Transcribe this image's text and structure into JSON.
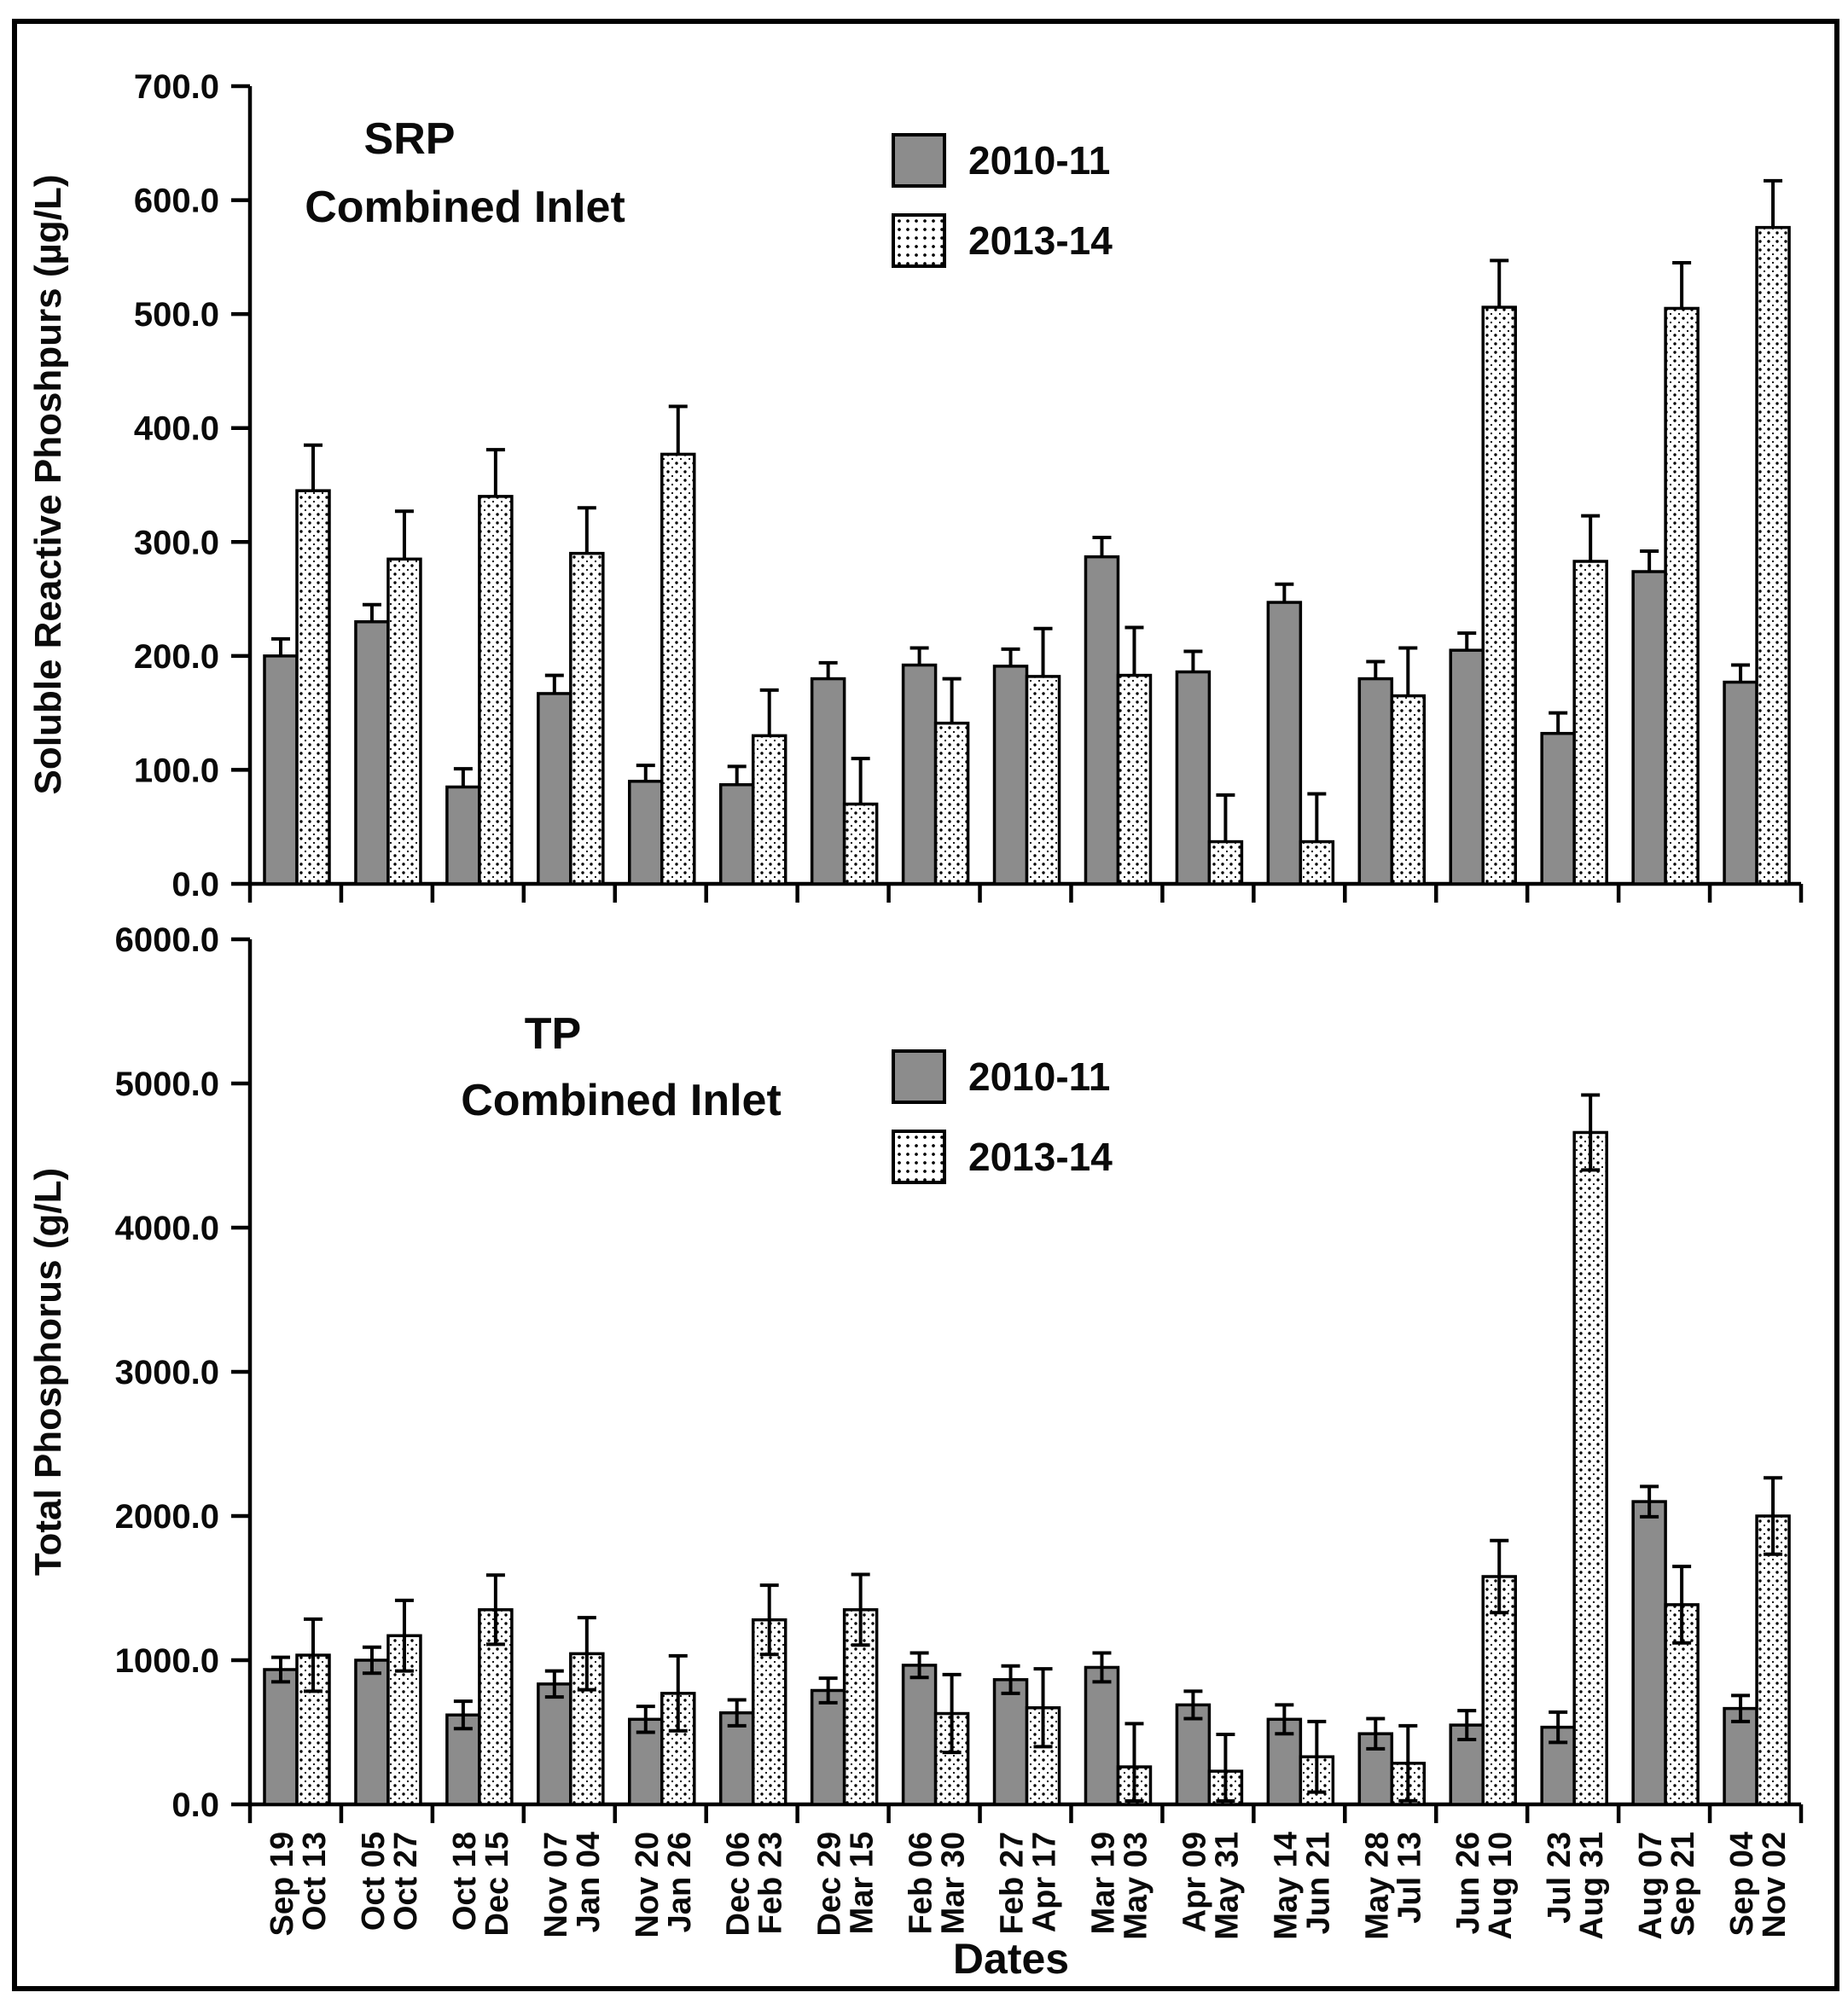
{
  "figure": {
    "background": "#ffffff",
    "frame_color": "#000000",
    "bar_solid_color": "#8c8c8c",
    "bar_dotted_color": "#ffffff",
    "note": "scanned figure: two stacked grouped bar charts with error bars"
  },
  "legend": {
    "entries": [
      {
        "label": "2010-11",
        "pattern": "solid"
      },
      {
        "label": "2013-14",
        "pattern": "dots"
      }
    ]
  },
  "chart_data": [
    {
      "type": "bar",
      "title": "SRP",
      "subtitle": "Combined Inlet",
      "ylabel": "Soluble Reactive Phoshpurs (µg/L)",
      "xlabel": "",
      "ylim": [
        0,
        700
      ],
      "ytick_step": 100,
      "ytick_labels": [
        "0.0",
        "100.0",
        "200.0",
        "300.0",
        "400.0",
        "500.0",
        "600.0",
        "700.0"
      ],
      "grid": false,
      "legend_position": "upper middle",
      "error_bars": "upper",
      "categories": [
        [
          "Sep 19",
          "Oct 13"
        ],
        [
          "Oct 05",
          "Oct 27"
        ],
        [
          "Oct 18",
          "Dec 15"
        ],
        [
          "Nov 07",
          "Jan 04"
        ],
        [
          "Nov 20",
          "Jan 26"
        ],
        [
          "Dec 06",
          "Feb 23"
        ],
        [
          "Dec 29",
          "Mar 15"
        ],
        [
          "Feb 06",
          "Mar 30"
        ],
        [
          "Feb 27",
          "Apr 17"
        ],
        [
          "Mar 19",
          "May 03"
        ],
        [
          "Apr 09",
          "May 31"
        ],
        [
          "May 14",
          "Jun 21"
        ],
        [
          "May 28",
          "Jul 13"
        ],
        [
          "Jun 26",
          "Aug 10"
        ],
        [
          "Jul 23",
          "Aug 31"
        ],
        [
          "Aug 07",
          "Sep 21"
        ],
        [
          "Sep 04",
          "Nov 02"
        ]
      ],
      "series": [
        {
          "name": "2010-11",
          "values": [
            200,
            230,
            85,
            167,
            90,
            87,
            180,
            192,
            191,
            287,
            186,
            247,
            180,
            205,
            132,
            274,
            177
          ],
          "errors": [
            15,
            15,
            16,
            16,
            14,
            16,
            14,
            15,
            15,
            17,
            18,
            16,
            15,
            15,
            18,
            18,
            15
          ]
        },
        {
          "name": "2013-14",
          "values": [
            345,
            285,
            340,
            290,
            377,
            130,
            70,
            141,
            182,
            183,
            37,
            37,
            165,
            506,
            283,
            505,
            576
          ],
          "errors": [
            40,
            42,
            41,
            40,
            42,
            40,
            40,
            39,
            42,
            42,
            41,
            42,
            42,
            41,
            40,
            40,
            41
          ]
        }
      ]
    },
    {
      "type": "bar",
      "title": "TP",
      "subtitle": "Combined Inlet",
      "ylabel": "Total Phosphorus (g/L)",
      "xlabel": "Dates",
      "ylim": [
        0,
        6000
      ],
      "ytick_step": 1000,
      "ytick_labels": [
        "0.0",
        "1000.0",
        "2000.0",
        "3000.0",
        "4000.0",
        "5000.0",
        "6000.0"
      ],
      "grid": false,
      "legend_position": "upper middle",
      "error_bars": "both",
      "categories": [
        [
          "Sep 19",
          "Oct 13"
        ],
        [
          "Oct 05",
          "Oct 27"
        ],
        [
          "Oct 18",
          "Dec 15"
        ],
        [
          "Nov 07",
          "Jan 04"
        ],
        [
          "Nov 20",
          "Jan 26"
        ],
        [
          "Dec 06",
          "Feb 23"
        ],
        [
          "Dec 29",
          "Mar 15"
        ],
        [
          "Feb 06",
          "Mar 30"
        ],
        [
          "Feb 27",
          "Apr 17"
        ],
        [
          "Mar 19",
          "May 03"
        ],
        [
          "Apr 09",
          "May 31"
        ],
        [
          "May 14",
          "Jun 21"
        ],
        [
          "May 28",
          "Jul 13"
        ],
        [
          "Jun 26",
          "Aug 10"
        ],
        [
          "Jul 23",
          "Aug 31"
        ],
        [
          "Aug 07",
          "Sep 21"
        ],
        [
          "Sep 04",
          "Nov 02"
        ]
      ],
      "series": [
        {
          "name": "2010-11",
          "values": [
            935,
            1000,
            620,
            835,
            590,
            635,
            790,
            965,
            865,
            950,
            690,
            590,
            490,
            550,
            535,
            2100,
            665
          ],
          "errors": [
            85,
            90,
            95,
            90,
            90,
            90,
            85,
            85,
            95,
            100,
            95,
            100,
            105,
            100,
            105,
            105,
            90
          ]
        },
        {
          "name": "2013-14",
          "values": [
            1035,
            1170,
            1350,
            1045,
            770,
            1280,
            1350,
            630,
            670,
            260,
            230,
            330,
            285,
            1580,
            4660,
            1385,
            2000
          ],
          "errors": [
            250,
            245,
            240,
            250,
            260,
            240,
            245,
            270,
            270,
            300,
            255,
            245,
            260,
            250,
            260,
            265,
            265
          ]
        }
      ]
    }
  ]
}
